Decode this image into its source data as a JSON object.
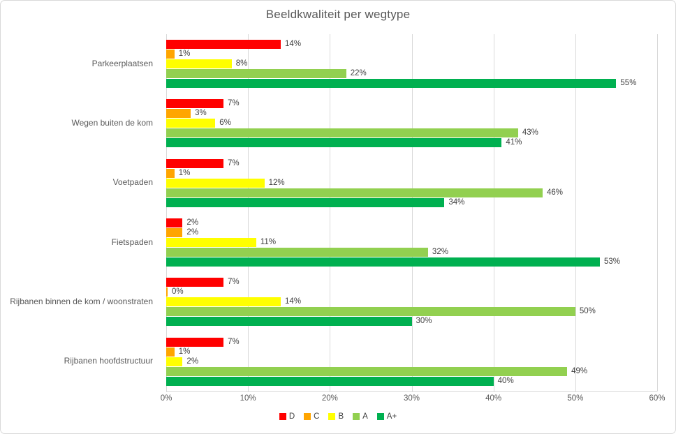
{
  "chart_data": {
    "type": "bar",
    "orientation": "horizontal",
    "title": "Beeldkwaliteit per wegtype",
    "categories": [
      "Parkeerplaatsen",
      "Wegen buiten de kom",
      "Voetpaden",
      "Fietspaden",
      "Rijbanen binnen de kom / woonstraten",
      "Rijbanen hoofdstructuur"
    ],
    "series": [
      {
        "name": "D",
        "color": "#ff0000",
        "values": [
          14,
          7,
          7,
          2,
          7,
          7
        ]
      },
      {
        "name": "C",
        "color": "#ffa500",
        "values": [
          1,
          3,
          1,
          2,
          0,
          1
        ]
      },
      {
        "name": "B",
        "color": "#ffff00",
        "values": [
          8,
          6,
          12,
          11,
          14,
          2
        ]
      },
      {
        "name": "A",
        "color": "#92d050",
        "values": [
          22,
          43,
          46,
          32,
          50,
          49
        ]
      },
      {
        "name": "A+",
        "color": "#00b050",
        "values": [
          55,
          41,
          34,
          53,
          30,
          40
        ]
      }
    ],
    "value_suffix": "%",
    "xlim": [
      0,
      60
    ],
    "x_ticks": [
      "0%",
      "10%",
      "20%",
      "30%",
      "40%",
      "50%",
      "60%"
    ],
    "grid": true,
    "gridline_color": "#d9d9d9",
    "legend_position": "bottom",
    "text_colors": {
      "title": "#595959",
      "labels": "#404040",
      "axis": "#595959"
    }
  }
}
